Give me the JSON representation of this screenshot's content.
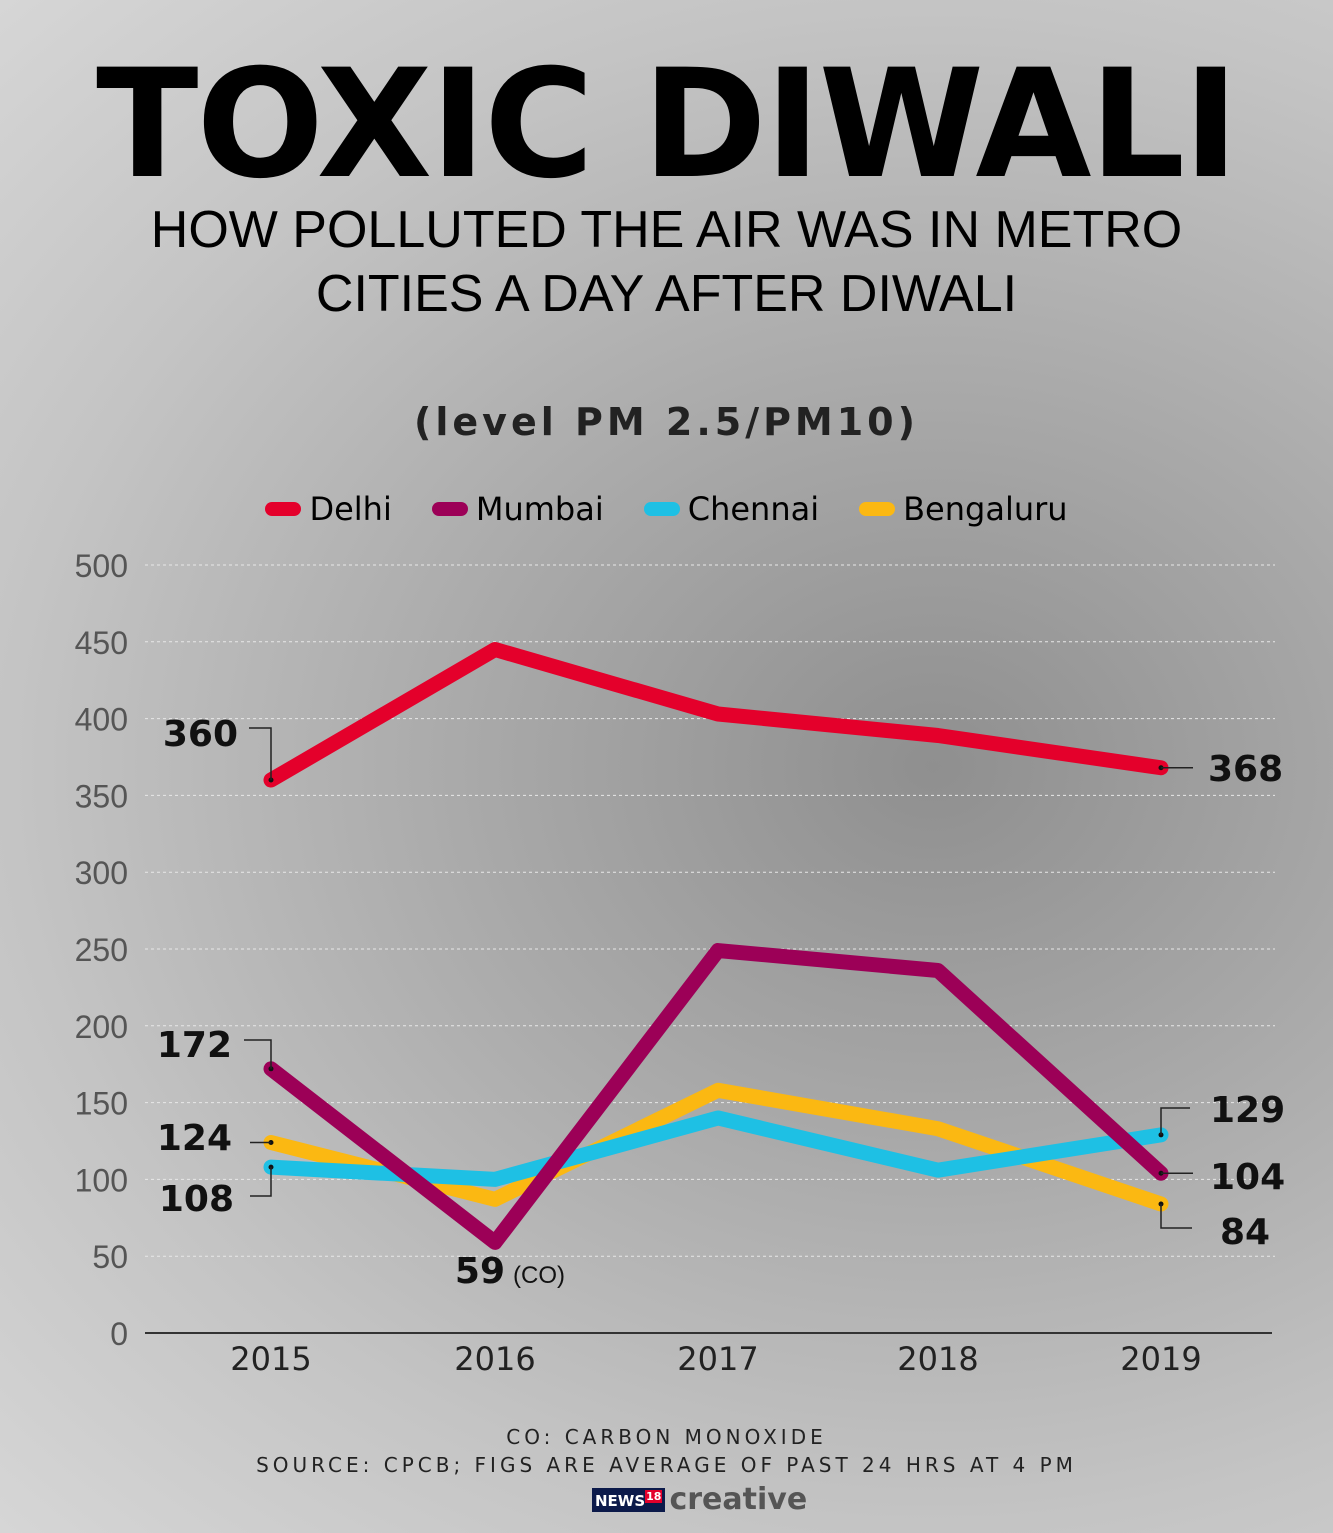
{
  "header": {
    "title": "TOXIC DIWALI",
    "subtitle": "HOW POLLUTED THE AIR WAS IN METRO CITIES A DAY AFTER DIWALI"
  },
  "chart_data": {
    "type": "line",
    "title": "(level PM 2.5/PM10)",
    "categories": [
      "2015",
      "2016",
      "2017",
      "2018",
      "2019"
    ],
    "ylim": [
      0,
      500
    ],
    "yticks": [
      0,
      50,
      100,
      150,
      200,
      250,
      300,
      350,
      400,
      450,
      500
    ],
    "grid": true,
    "legend_placement": "top",
    "series": [
      {
        "name": "Delhi",
        "color": "#e4002b",
        "values": [
          360,
          445,
          403,
          389,
          368
        ]
      },
      {
        "name": "Mumbai",
        "color": "#9c0057",
        "values": [
          172,
          59,
          249,
          236,
          104
        ]
      },
      {
        "name": "Chennai",
        "color": "#1ec0e4",
        "values": [
          108,
          100,
          140,
          106,
          129
        ]
      },
      {
        "name": "Bengaluru",
        "color": "#fbb812",
        "values": [
          124,
          87,
          158,
          133,
          84
        ]
      }
    ],
    "data_labels": [
      {
        "series": "Delhi",
        "x": "2015",
        "text": "360"
      },
      {
        "series": "Delhi",
        "x": "2019",
        "text": "368"
      },
      {
        "series": "Mumbai",
        "x": "2015",
        "text": "172"
      },
      {
        "series": "Mumbai",
        "x": "2016",
        "text": "59",
        "note": "(CO)"
      },
      {
        "series": "Mumbai",
        "x": "2019",
        "text": "104"
      },
      {
        "series": "Chennai",
        "x": "2015",
        "text": "108"
      },
      {
        "series": "Chennai",
        "x": "2019",
        "text": "129"
      },
      {
        "series": "Bengaluru",
        "x": "2015",
        "text": "124"
      },
      {
        "series": "Bengaluru",
        "x": "2019",
        "text": "84"
      }
    ]
  },
  "footer": {
    "note": "CO: CARBON MONOXIDE",
    "source": "SOURCE: CPCB; FIGS ARE AVERAGE OF PAST 24 HRS AT 4 PM"
  },
  "logo": {
    "news": "NEWS",
    "number": "18",
    "brand": "creative"
  }
}
